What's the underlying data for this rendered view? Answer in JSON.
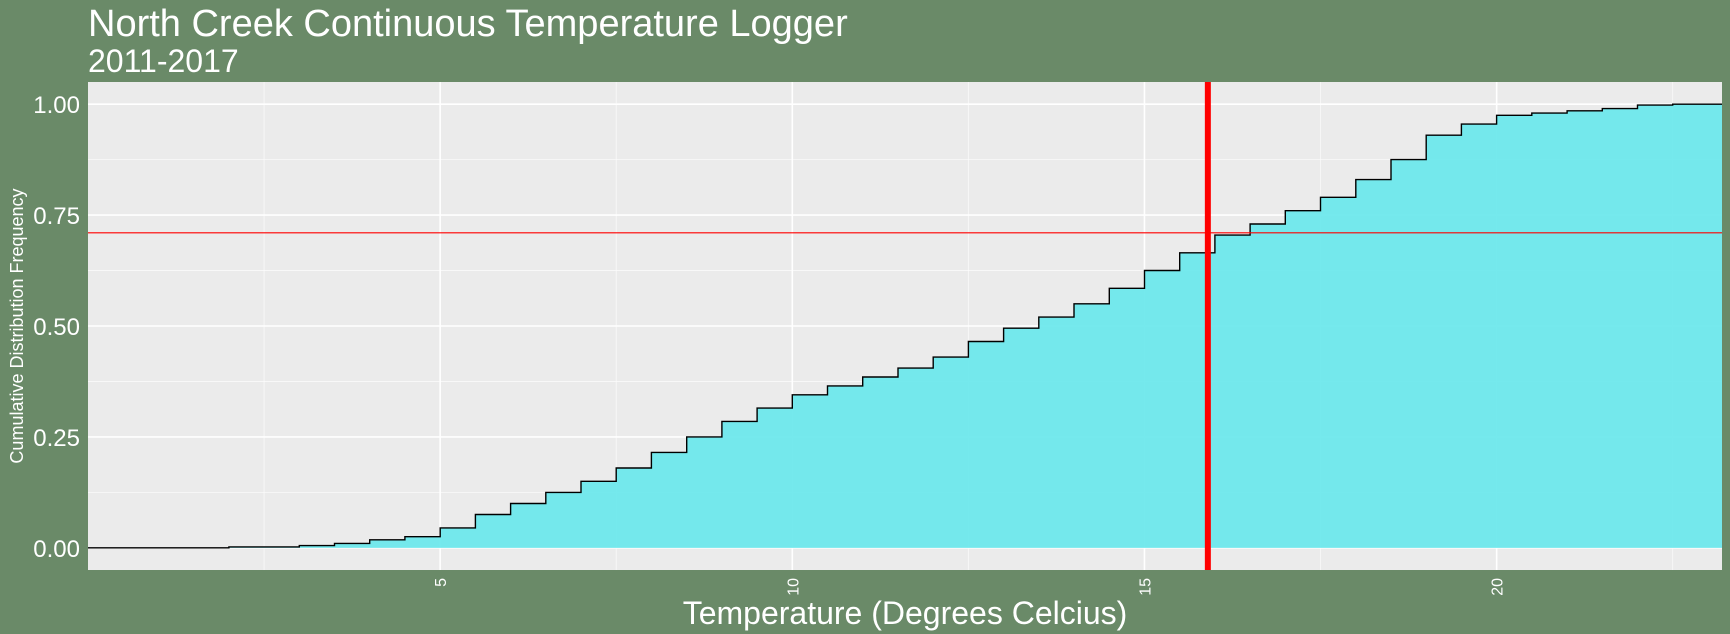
{
  "chart_data": {
    "type": "area",
    "title": "North Creek Continuous Temperature Logger",
    "subtitle": "2011-2017",
    "xlabel": "Temperature (Degrees Celcius)",
    "ylabel": "Cumulative Distribution Frequency",
    "xlim": [
      0,
      23.2
    ],
    "ylim": [
      -0.05,
      1.05
    ],
    "x_ticks": [
      5,
      10,
      15,
      20
    ],
    "x_tick_labels": [
      "5",
      "10",
      "15",
      "20"
    ],
    "y_ticks": [
      0,
      0.25,
      0.5,
      0.75,
      1.0
    ],
    "y_tick_labels": [
      "0.00",
      "0.25",
      "0.50",
      "0.75",
      "1.00"
    ],
    "grid": true,
    "series": [
      {
        "x": [
          0,
          1.2,
          2.0,
          3.0,
          3.5,
          4.0,
          4.5,
          5.0,
          5.5,
          6.0,
          6.5,
          7.0,
          7.5,
          8.0,
          8.5,
          9.0,
          9.5,
          10.0,
          10.5,
          11.0,
          11.5,
          12.0,
          12.5,
          13.0,
          13.5,
          14.0,
          14.5,
          15.0,
          15.5,
          16.0,
          16.5,
          17.0,
          17.5,
          18.0,
          18.5,
          19.0,
          19.5,
          20.0,
          20.5,
          21.0,
          21.5,
          22.0,
          22.5,
          23.2
        ],
        "y": [
          0.0,
          0.0,
          0.002,
          0.005,
          0.01,
          0.018,
          0.025,
          0.045,
          0.075,
          0.1,
          0.125,
          0.15,
          0.18,
          0.215,
          0.25,
          0.285,
          0.315,
          0.345,
          0.365,
          0.385,
          0.405,
          0.43,
          0.465,
          0.495,
          0.52,
          0.55,
          0.585,
          0.625,
          0.665,
          0.705,
          0.73,
          0.76,
          0.79,
          0.83,
          0.875,
          0.93,
          0.955,
          0.975,
          0.98,
          0.985,
          0.99,
          0.998,
          1.0,
          1.0
        ]
      }
    ],
    "reference_lines": {
      "vertical_x": 15.9,
      "horizontal_y": 0.71
    },
    "colors": {
      "background": "#6a8a68",
      "panel": "#ebebeb",
      "grid": "#ffffff",
      "fill": "#6ee8ec",
      "line": "#000000",
      "vline": "#ff0000",
      "hline": "#ff0000",
      "text": "#ffffff"
    }
  }
}
